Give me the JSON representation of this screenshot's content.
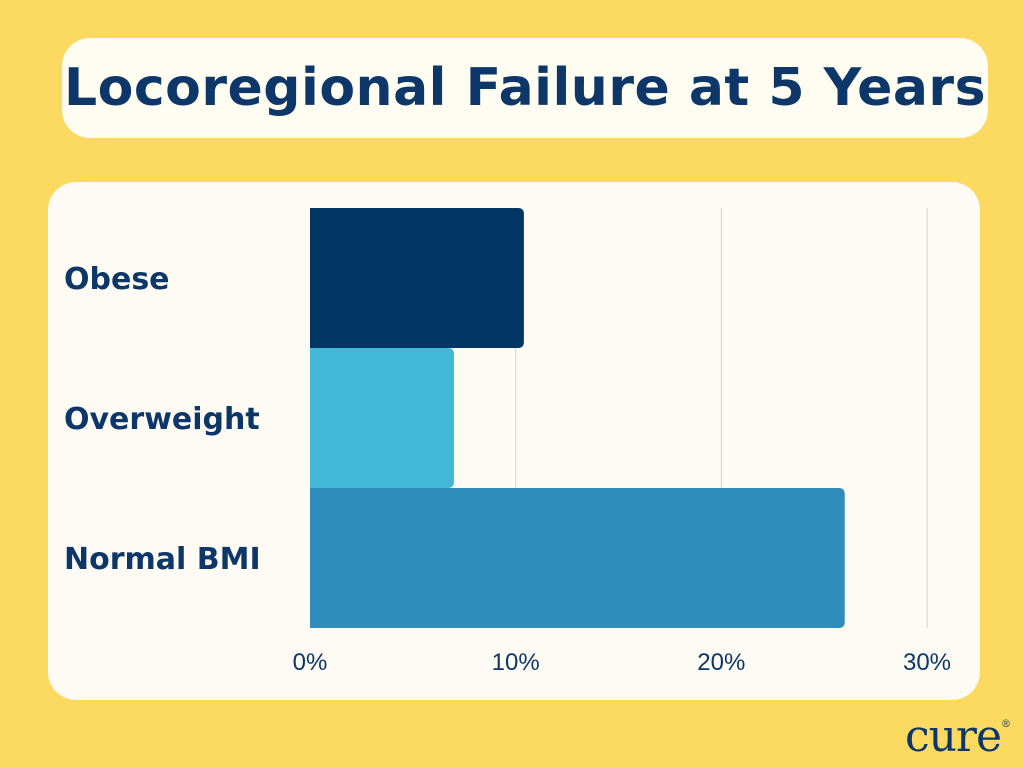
{
  "header": {
    "title": "Locoregional Failure at 5 Years"
  },
  "brand": {
    "logo_text": "cure"
  },
  "colors": {
    "background": "#fcd961",
    "panel": "#fdfbf3",
    "text": "#0d3768",
    "gridline": "#d9d9d6"
  },
  "chart_data": {
    "type": "bar",
    "orientation": "horizontal",
    "title": "Locoregional Failure at 5 Years",
    "xlabel": "",
    "ylabel": "",
    "categories": [
      "Obese",
      "Overweight",
      "Normal BMI"
    ],
    "values": [
      10.4,
      7.0,
      26.0
    ],
    "bar_colors": [
      "#023665",
      "#43b8d6",
      "#308cbb"
    ],
    "xlim": [
      0,
      30
    ],
    "ticks": [
      0,
      10,
      20,
      30
    ],
    "tick_labels": [
      "0%",
      "10%",
      "20%",
      "30%"
    ],
    "unit": "%",
    "grid": true,
    "legend": "none"
  }
}
